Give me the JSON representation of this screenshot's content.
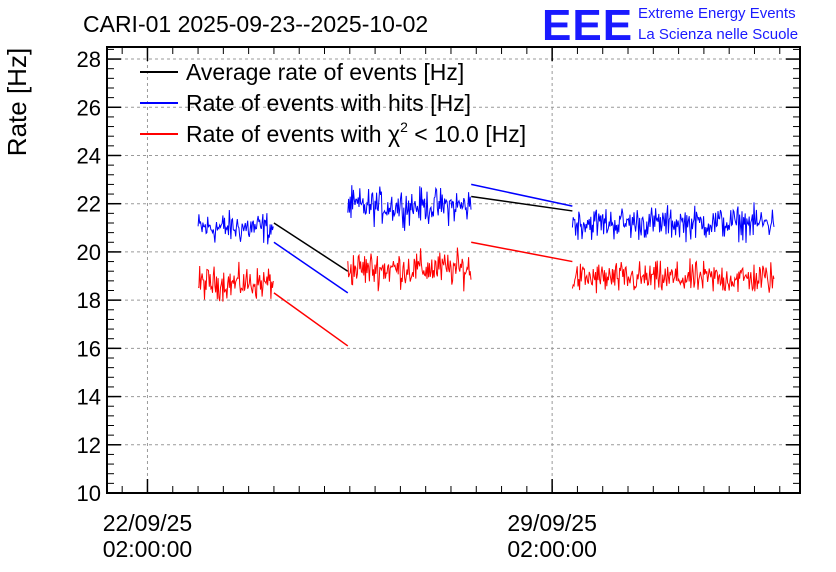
{
  "colors": {
    "average": "#000000",
    "hits": "#0000ff",
    "chi2": "#ff0000",
    "logo": "#1a1aff",
    "grid": "#9a9a9a"
  },
  "logo": {
    "mark": "EEE",
    "line1": "Extreme Energy Events",
    "line2": "La Scienza nelle Scuole"
  },
  "chart_data": {
    "type": "line",
    "title": "CARI-01 2025-09-23--2025-10-02",
    "xlabel": "",
    "ylabel": "Rate [Hz]",
    "ylim": [
      10,
      28.5
    ],
    "xlim_days": [
      -0.4,
      6.45
    ],
    "yticks": [
      10,
      12,
      14,
      16,
      18,
      20,
      22,
      24,
      26,
      28
    ],
    "xticks": [
      {
        "day": 0,
        "date": "22/09/25",
        "time": "02:00:00"
      },
      {
        "day": 4,
        "date": "29/09/25",
        "time": "02:00:00"
      }
    ],
    "grid": true,
    "legend_position": "top-left",
    "chi2_symbol": "χ",
    "chi2_exponent": "2",
    "legend": [
      {
        "key": "average",
        "label": "Average rate of events [Hz]"
      },
      {
        "key": "hits",
        "label": "Rate of events with hits [Hz]"
      },
      {
        "key": "chi2",
        "label_pre": "Rate of events with ",
        "label_post": " < 10.0 [Hz]"
      }
    ],
    "segments": [
      {
        "x_start": 0.5,
        "x_end": 1.25,
        "hits_mean": 21.0,
        "hits_noise": 0.55,
        "chi2_mean": 18.7,
        "chi2_noise": 0.55
      },
      {
        "x_start": 1.98,
        "x_end": 3.2,
        "hits_mean": 21.9,
        "hits_noise": 0.6,
        "chi2_mean": 19.3,
        "chi2_noise": 0.6
      },
      {
        "x_start": 4.2,
        "x_end": 6.2,
        "hits_mean": 21.2,
        "hits_noise": 0.55,
        "chi2_mean": 18.9,
        "chi2_noise": 0.55
      }
    ],
    "gap_lines": [
      {
        "series": "average",
        "x1": 1.25,
        "y1": 21.2,
        "x2": 1.98,
        "y2": 19.2
      },
      {
        "series": "hits",
        "x1": 1.25,
        "y1": 20.4,
        "x2": 1.98,
        "y2": 18.3
      },
      {
        "series": "chi2",
        "x1": 1.25,
        "y1": 18.3,
        "x2": 1.98,
        "y2": 16.1
      },
      {
        "series": "average",
        "x1": 3.2,
        "y1": 22.3,
        "x2": 4.2,
        "y2": 21.7
      },
      {
        "series": "hits",
        "x1": 3.2,
        "y1": 22.8,
        "x2": 4.2,
        "y2": 21.9
      },
      {
        "series": "chi2",
        "x1": 3.2,
        "y1": 20.4,
        "x2": 4.2,
        "y2": 19.6
      }
    ]
  }
}
